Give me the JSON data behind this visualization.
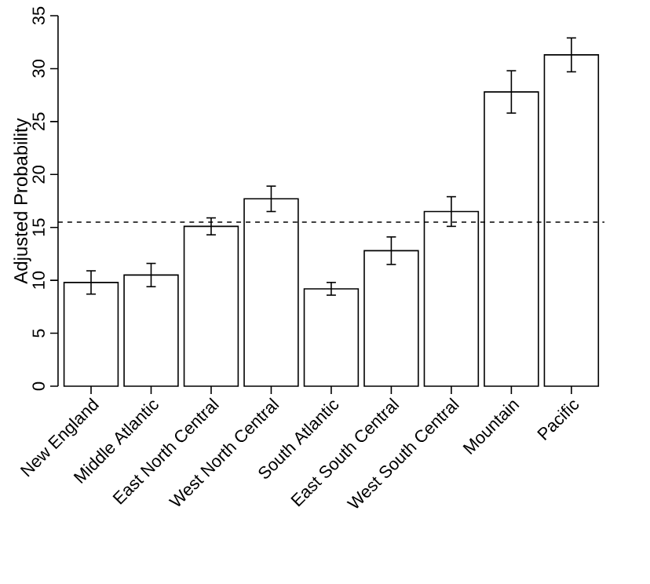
{
  "chart_data": {
    "type": "bar",
    "ylabel": "Adjusted Probability",
    "categories": [
      "New England",
      "Middle Atlantic",
      "East North Central",
      "West North Central",
      "South Atlantic",
      "East South Central",
      "West South Central",
      "Mountain",
      "Pacific"
    ],
    "values": [
      9.8,
      10.5,
      15.1,
      17.7,
      9.2,
      12.8,
      16.5,
      27.8,
      31.3
    ],
    "errors": [
      1.1,
      1.1,
      0.8,
      1.2,
      0.6,
      1.3,
      1.4,
      2.0,
      1.6
    ],
    "color": "#ffffff",
    "ylim": [
      0,
      35
    ],
    "yticks": [
      0,
      5,
      10,
      15,
      20,
      25,
      30,
      35
    ],
    "ref_lines": [
      {
        "axis": "y",
        "value": 15.5,
        "line_style": "dashed",
        "color": "#000000"
      }
    ]
  }
}
